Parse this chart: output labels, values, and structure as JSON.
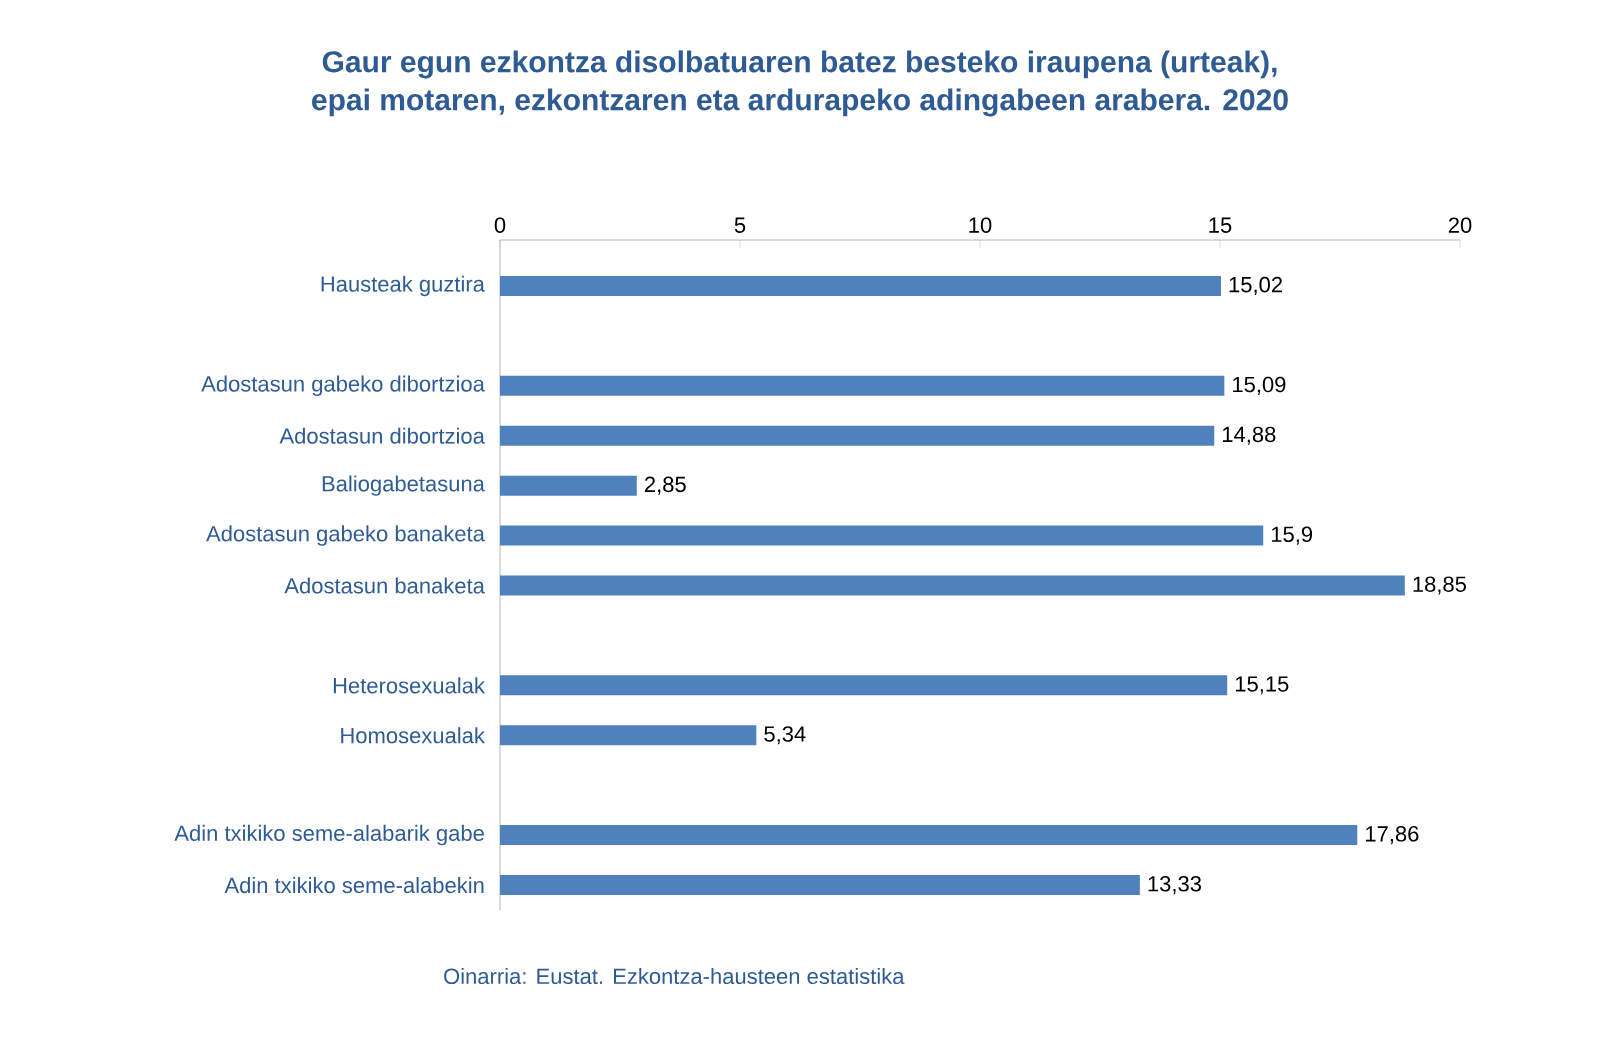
{
  "chart_data": {
    "type": "bar",
    "orientation": "horizontal",
    "title": "Gaur egun ezkontza disolbatuaren batez besteko iraupena (urteak),\nepai motaren, ezkontzaren eta ardurapeko adingabeen arabera. 2020",
    "categories": [
      "Hausteak guztira",
      null,
      "Adostasun gabeko dibortzioa",
      "Adostasun dibortzioa",
      "Baliogabetasuna",
      "Adostasun gabeko banaketa",
      "Adostasun banaketa",
      null,
      "Heterosexualak",
      "Homosexualak",
      null,
      "Adin txikiko seme-alabarik gabe",
      "Adin txikiko seme-alabekin"
    ],
    "values": [
      15.02,
      null,
      15.09,
      14.88,
      2.85,
      15.9,
      18.85,
      null,
      15.15,
      5.34,
      null,
      17.86,
      13.33
    ],
    "value_labels": [
      "15,02",
      null,
      "15,09",
      "14,88",
      "2,85",
      "15,9",
      "18,85",
      null,
      "15,15",
      "5,34",
      null,
      "17,86",
      "13,33"
    ],
    "color": "#4f81bd",
    "xlim": [
      0,
      20
    ],
    "xticks": [
      0,
      5,
      10,
      15,
      20
    ],
    "annotations": [
      "Oinarria: Eustat. Ezkontza-hausteen estatistika"
    ]
  }
}
